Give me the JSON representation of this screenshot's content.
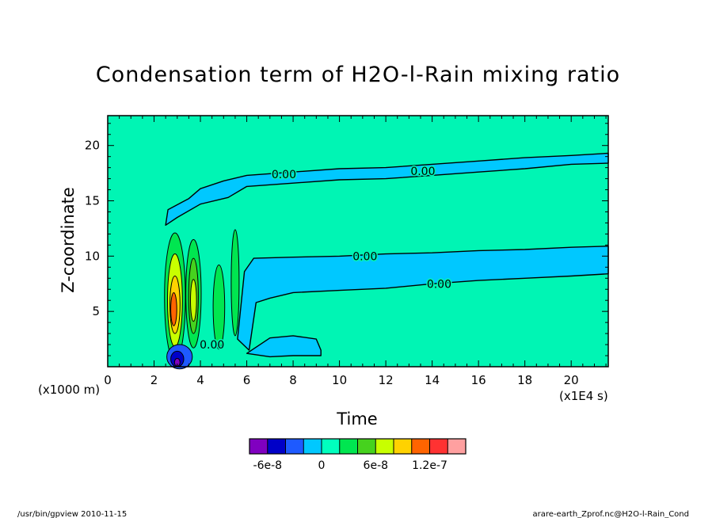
{
  "chart_data": {
    "type": "heatmap",
    "title": "Condensation term of H2O-l-Rain mixing ratio",
    "xlabel": "Time",
    "ylabel": "Z-coordinate",
    "x_unit": "(x1E4 s)",
    "y_unit": "(x1000 m)",
    "xlim": [
      0,
      21.6
    ],
    "ylim": [
      0,
      22.7
    ],
    "x_ticks": [
      0,
      2,
      4,
      6,
      8,
      10,
      12,
      14,
      16,
      18,
      20
    ],
    "y_ticks": [
      5,
      10,
      15,
      20
    ],
    "x_tick_labels": [
      "0",
      "2",
      "4",
      "6",
      "8",
      "10",
      "12",
      "14",
      "16",
      "18",
      "20"
    ],
    "y_tick_labels": [
      "5",
      "10",
      "15",
      "20"
    ],
    "contour_labels": [
      "0.00",
      "0.00",
      "0.00",
      "0.00",
      "0.00"
    ],
    "colorbar": {
      "colors": [
        "#8000c0",
        "#0000c8",
        "#1e5aff",
        "#00c8ff",
        "#00ffbe",
        "#00e650",
        "#46d21e",
        "#c8ff00",
        "#ffd200",
        "#ff6400",
        "#ff3232",
        "#ffa0a0"
      ],
      "tick_labels": [
        "-6e-8",
        "0",
        "6e-8",
        "1.2e-7"
      ],
      "tick_values": [
        -6e-08,
        0,
        6e-08,
        1.2e-07
      ]
    },
    "background_color": "#00f5b4",
    "negative_color": "#00c8ff",
    "bands": [
      {
        "name": "upper",
        "level": "0.00",
        "top": [
          [
            2.5,
            12.8
          ],
          [
            2.6,
            14.2
          ],
          [
            3.5,
            15.2
          ],
          [
            4.0,
            16.1
          ],
          [
            5.0,
            16.8
          ],
          [
            6.0,
            17.3
          ],
          [
            8.0,
            17.6
          ],
          [
            10.0,
            17.9
          ],
          [
            12.0,
            18.0
          ],
          [
            14.0,
            18.3
          ],
          [
            16.0,
            18.6
          ],
          [
            18.0,
            18.9
          ],
          [
            20.0,
            19.1
          ],
          [
            21.6,
            19.3
          ]
        ],
        "bottom": [
          [
            2.5,
            12.8
          ],
          [
            3.0,
            13.5
          ],
          [
            4.0,
            14.7
          ],
          [
            5.2,
            15.3
          ],
          [
            6.0,
            16.3
          ],
          [
            8.0,
            16.6
          ],
          [
            10.0,
            16.9
          ],
          [
            12.0,
            17.0
          ],
          [
            14.0,
            17.3
          ],
          [
            16.0,
            17.6
          ],
          [
            18.0,
            17.9
          ],
          [
            20.0,
            18.3
          ],
          [
            21.6,
            18.4
          ]
        ]
      },
      {
        "name": "middle",
        "level": "0.00",
        "top": [
          [
            5.6,
            2.5
          ],
          [
            5.9,
            8.6
          ],
          [
            6.3,
            9.8
          ],
          [
            8.0,
            9.9
          ],
          [
            10.0,
            10.0
          ],
          [
            12.0,
            10.2
          ],
          [
            14.0,
            10.3
          ],
          [
            16.0,
            10.5
          ],
          [
            18.0,
            10.6
          ],
          [
            20.0,
            10.8
          ],
          [
            21.6,
            10.9
          ]
        ],
        "bottom": [
          [
            5.6,
            2.5
          ],
          [
            6.1,
            1.5
          ],
          [
            6.4,
            5.8
          ],
          [
            7.0,
            6.2
          ],
          [
            8.0,
            6.7
          ],
          [
            10.0,
            6.9
          ],
          [
            12.0,
            7.1
          ],
          [
            14.0,
            7.5
          ],
          [
            16.0,
            7.8
          ],
          [
            18.0,
            8.0
          ],
          [
            20.0,
            8.2
          ],
          [
            21.6,
            8.4
          ]
        ]
      },
      {
        "name": "lower",
        "level": "",
        "top": [
          [
            6.0,
            1.2
          ],
          [
            7.0,
            2.6
          ],
          [
            8.0,
            2.8
          ],
          [
            9.0,
            2.5
          ],
          [
            9.2,
            1.5
          ]
        ],
        "bottom": [
          [
            6.0,
            1.2
          ],
          [
            7.0,
            0.9
          ],
          [
            8.0,
            1.0
          ],
          [
            9.2,
            1.0
          ]
        ]
      }
    ],
    "cells": [
      {
        "x": 2.9,
        "y": 6.3,
        "rx": 0.45,
        "ry": 5.8,
        "color": "#00e650"
      },
      {
        "x": 2.9,
        "y": 6.0,
        "rx": 0.32,
        "ry": 4.2,
        "color": "#c8ff00"
      },
      {
        "x": 2.9,
        "y": 5.6,
        "rx": 0.22,
        "ry": 2.6,
        "color": "#ffd200"
      },
      {
        "x": 2.85,
        "y": 5.2,
        "rx": 0.13,
        "ry": 1.5,
        "color": "#ff6400"
      },
      {
        "x": 3.7,
        "y": 6.6,
        "rx": 0.33,
        "ry": 4.9,
        "color": "#00e650"
      },
      {
        "x": 3.7,
        "y": 6.4,
        "rx": 0.21,
        "ry": 3.4,
        "color": "#46d21e"
      },
      {
        "x": 3.7,
        "y": 6.0,
        "rx": 0.13,
        "ry": 1.9,
        "color": "#c8ff00"
      },
      {
        "x": 4.8,
        "y": 5.4,
        "rx": 0.25,
        "ry": 3.8,
        "color": "#00e650"
      },
      {
        "x": 5.5,
        "y": 7.6,
        "rx": 0.17,
        "ry": 4.8,
        "color": "#00e650"
      },
      {
        "x": 3.1,
        "y": 0.9,
        "rx": 0.55,
        "ry": 1.1,
        "color": "#1e5aff"
      },
      {
        "x": 3.0,
        "y": 0.7,
        "rx": 0.28,
        "ry": 0.7,
        "color": "#0000c8"
      },
      {
        "x": 3.0,
        "y": 0.4,
        "rx": 0.12,
        "ry": 0.35,
        "color": "#8000c0"
      }
    ]
  },
  "footer": {
    "left": "/usr/bin/gpview   2010-11-15",
    "right": "arare-earth_Zprof.nc@H2O-l-Rain_Cond"
  }
}
